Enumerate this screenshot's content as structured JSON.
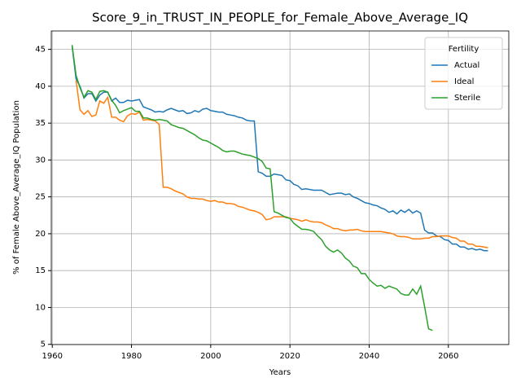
{
  "chart_data": {
    "type": "line",
    "title": "Score_9_in_TRUST_IN_PEOPLE_for_Female_Above_Average_IQ",
    "xlabel": "Years",
    "ylabel": "% of Female Above_Average_IQ Population",
    "legend_title": "Fertility",
    "legend_position": "upper right",
    "grid": true,
    "x": [
      1965,
      1966,
      1967,
      1968,
      1969,
      1970,
      1971,
      1972,
      1973,
      1974,
      1975,
      1976,
      1977,
      1978,
      1979,
      1980,
      1981,
      1982,
      1983,
      1984,
      1985,
      1986,
      1987,
      1988,
      1989,
      1990,
      1991,
      1992,
      1993,
      1994,
      1995,
      1996,
      1997,
      1998,
      1999,
      2000,
      2001,
      2002,
      2003,
      2004,
      2005,
      2006,
      2007,
      2008,
      2009,
      2010,
      2011,
      2012,
      2013,
      2014,
      2015,
      2016,
      2017,
      2018,
      2019,
      2020,
      2021,
      2022,
      2023,
      2024,
      2025,
      2026,
      2027,
      2028,
      2029,
      2030,
      2031,
      2032,
      2033,
      2034,
      2035,
      2036,
      2037,
      2038,
      2039,
      2040,
      2041,
      2042,
      2043,
      2044,
      2045,
      2046,
      2047,
      2048,
      2049,
      2050,
      2051,
      2052,
      2053,
      2054,
      2055,
      2056,
      2057,
      2058,
      2059,
      2060,
      2061,
      2062,
      2063,
      2064,
      2065,
      2066,
      2067,
      2068,
      2069,
      2070
    ],
    "series": [
      {
        "name": "Actual",
        "color": "#1f77b4",
        "values": [
          45.5,
          41,
          40,
          38.4,
          39,
          39,
          38,
          38.8,
          39.2,
          39.2,
          38,
          38.4,
          37.8,
          37.8,
          38.1,
          38,
          38.1,
          38.2,
          37.2,
          37,
          36.8,
          36.5,
          36.6,
          36.5,
          36.8,
          37,
          36.8,
          36.6,
          36.7,
          36.3,
          36.4,
          36.7,
          36.5,
          36.9,
          37,
          36.7,
          36.6,
          36.5,
          36.5,
          36.2,
          36.1,
          36,
          35.8,
          35.7,
          35.4,
          35.3,
          35.3,
          28.4,
          28.2,
          27.8,
          27.8,
          28.1,
          28,
          27.9,
          27.3,
          27.2,
          26.7,
          26.5,
          26,
          26.1,
          26,
          25.9,
          25.9,
          25.9,
          25.6,
          25.3,
          25.4,
          25.5,
          25.5,
          25.3,
          25.4,
          25,
          24.8,
          24.5,
          24.2,
          24.1,
          23.9,
          23.8,
          23.5,
          23.3,
          22.9,
          23.1,
          22.7,
          23.2,
          22.9,
          23.3,
          22.8,
          23.1,
          22.8,
          20.5,
          20.1,
          20.1,
          19.7,
          19.6,
          19.2,
          19.1,
          18.6,
          18.6,
          18.2,
          18.2,
          17.9,
          18,
          17.8,
          17.9,
          17.7,
          17.7
        ]
      },
      {
        "name": "Ideal",
        "color": "#ff7f0e",
        "values": [
          null,
          40.8,
          36.8,
          36.2,
          36.7,
          35.9,
          36.1,
          38,
          37.7,
          38.5,
          35.8,
          35.8,
          35.4,
          35.2,
          36,
          36.3,
          36.2,
          36.5,
          35.4,
          35.5,
          35.4,
          35.3,
          34.8,
          26.3,
          26.3,
          26.1,
          25.8,
          25.6,
          25.4,
          25,
          24.8,
          24.8,
          24.7,
          24.7,
          24.5,
          24.4,
          24.5,
          24.3,
          24.3,
          24.1,
          24.1,
          24,
          23.7,
          23.6,
          23.4,
          23.2,
          23.1,
          22.9,
          22.6,
          21.9,
          22,
          22.3,
          22.3,
          22.3,
          22.3,
          22.1,
          22,
          21.9,
          21.7,
          21.9,
          21.7,
          21.6,
          21.6,
          21.5,
          21.2,
          21,
          20.7,
          20.7,
          20.5,
          20.4,
          20.5,
          20.5,
          20.6,
          20.4,
          20.3,
          20.3,
          20.3,
          20.3,
          20.3,
          20.2,
          20.1,
          20,
          19.7,
          19.6,
          19.6,
          19.5,
          19.3,
          19.3,
          19.3,
          19.4,
          19.4,
          19.6,
          19.6,
          19.7,
          19.7,
          19.7,
          19.5,
          19.4,
          19,
          19,
          18.6,
          18.6,
          18.3,
          18.3,
          18.2,
          18.1
        ]
      },
      {
        "name": "Sterile",
        "color": "#2ca02c",
        "values": [
          45.6,
          41.5,
          39.8,
          38.5,
          39.4,
          39.2,
          38.2,
          39.3,
          39.4,
          39.2,
          38.1,
          37.4,
          36.4,
          36.7,
          36.9,
          37.1,
          36.6,
          36.6,
          35.7,
          35.7,
          35.5,
          35.4,
          35.5,
          35.4,
          35.3,
          34.8,
          34.6,
          34.4,
          34.3,
          34,
          33.7,
          33.4,
          33,
          32.7,
          32.6,
          32.3,
          32,
          31.7,
          31.3,
          31.1,
          31.2,
          31.2,
          31,
          30.8,
          30.7,
          30.6,
          30.4,
          30.2,
          29.8,
          28.9,
          28.8,
          23,
          22.8,
          22.5,
          22.2,
          22.1,
          21.4,
          21,
          20.6,
          20.6,
          20.5,
          20.3,
          19.7,
          19.2,
          18.3,
          17.8,
          17.5,
          17.8,
          17.4,
          16.7,
          16.3,
          15.6,
          15.4,
          14.6,
          14.6,
          13.8,
          13.3,
          12.9,
          13,
          12.6,
          12.9,
          12.7,
          12.5,
          11.9,
          11.7,
          11.7,
          12.5,
          11.8,
          12.9,
          10.1,
          7.1,
          6.9,
          null,
          null,
          null,
          null,
          null,
          null,
          null,
          null,
          null,
          null,
          null,
          null,
          null,
          null
        ]
      }
    ],
    "xlim": [
      1959.75,
      2075.25
    ],
    "ylim": [
      4.97,
      47.5
    ],
    "xticks": [
      1960,
      1980,
      2000,
      2020,
      2040,
      2060
    ],
    "yticks": [
      5,
      10,
      15,
      20,
      25,
      30,
      35,
      40,
      45
    ]
  }
}
